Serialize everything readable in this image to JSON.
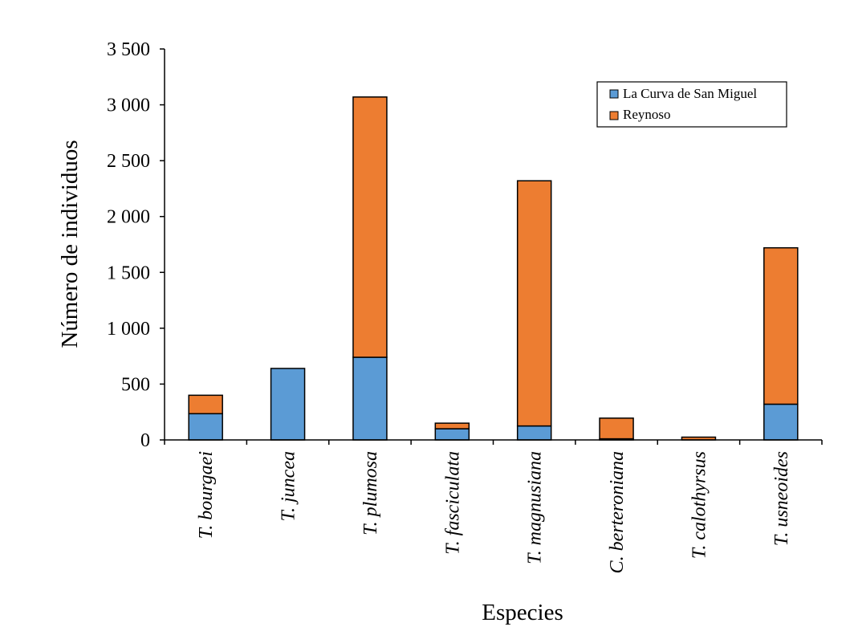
{
  "chart_data": {
    "type": "bar",
    "stacked": true,
    "title": "",
    "xlabel": "Especies",
    "ylabel": "Número de individuos",
    "ylim": [
      0,
      3500
    ],
    "yticks": [
      {
        "value": 0,
        "label": "0"
      },
      {
        "value": 500,
        "label": "500"
      },
      {
        "value": 1000,
        "label": "1 000"
      },
      {
        "value": 1500,
        "label": "1 500"
      },
      {
        "value": 2000,
        "label": "2 000"
      },
      {
        "value": 2500,
        "label": "2 500"
      },
      {
        "value": 3000,
        "label": "3 000"
      },
      {
        "value": 3500,
        "label": "3 500"
      }
    ],
    "categories": [
      "T. bourgaei",
      "T. juncea",
      "T. plumosa",
      "T. fasciculata",
      "T. magnusiana",
      "C. berteroniana",
      "T. calothyrsus",
      "T. usneoides"
    ],
    "series": [
      {
        "name": "La Curva de San Miguel",
        "color": "#5b9bd5",
        "values": [
          235,
          640,
          740,
          100,
          125,
          10,
          0,
          320
        ]
      },
      {
        "name": "Reynoso",
        "color": "#ed7d31",
        "values": [
          165,
          0,
          2330,
          50,
          2195,
          185,
          25,
          1400
        ]
      }
    ],
    "legend_position": "top-right",
    "grid": false
  }
}
